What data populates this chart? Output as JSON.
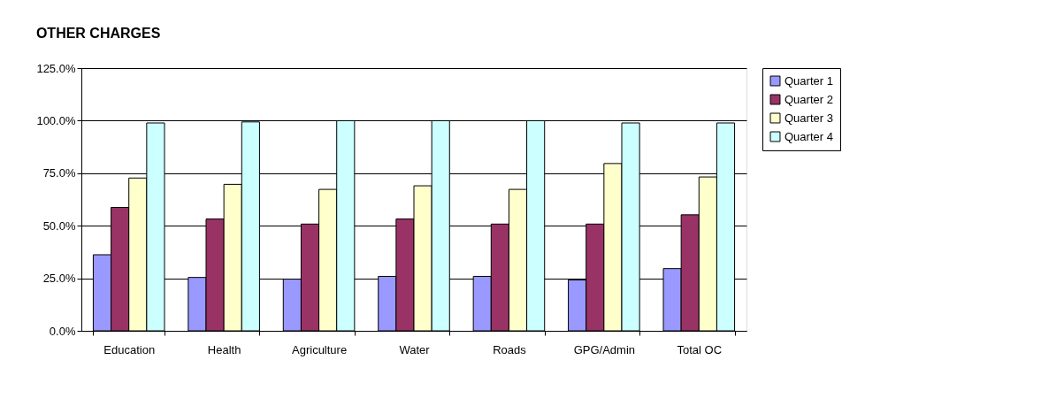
{
  "chart_data": {
    "type": "bar",
    "title": "OTHER CHARGES",
    "categories": [
      "Education",
      "Health",
      "Agriculture",
      "Water",
      "Roads",
      "GPG/Admin",
      "Total OC"
    ],
    "series": [
      {
        "name": "Quarter 1",
        "color": "#9999ff",
        "values": [
          36.2,
          25.4,
          24.6,
          25.9,
          25.9,
          24.2,
          29.6
        ]
      },
      {
        "name": "Quarter 2",
        "color": "#993366",
        "values": [
          58.7,
          53.2,
          50.8,
          53.2,
          50.8,
          50.8,
          55.2
        ]
      },
      {
        "name": "Quarter 3",
        "color": "#ffffcc",
        "values": [
          72.7,
          69.7,
          67.3,
          69.0,
          67.3,
          79.6,
          73.2
        ]
      },
      {
        "name": "Quarter 4",
        "color": "#ccffff",
        "values": [
          98.9,
          99.4,
          100,
          100,
          100,
          98.9,
          98.9
        ]
      }
    ],
    "ylim": [
      0,
      125
    ],
    "yticks": [
      {
        "value": 0,
        "label": "0.0%"
      },
      {
        "value": 25,
        "label": "25.0%"
      },
      {
        "value": 50,
        "label": "50.0%"
      },
      {
        "value": 75,
        "label": "75.0%"
      },
      {
        "value": 100,
        "label": "100.0%"
      },
      {
        "value": 125,
        "label": "125.0%"
      }
    ],
    "grid": "y",
    "legend": "right"
  }
}
